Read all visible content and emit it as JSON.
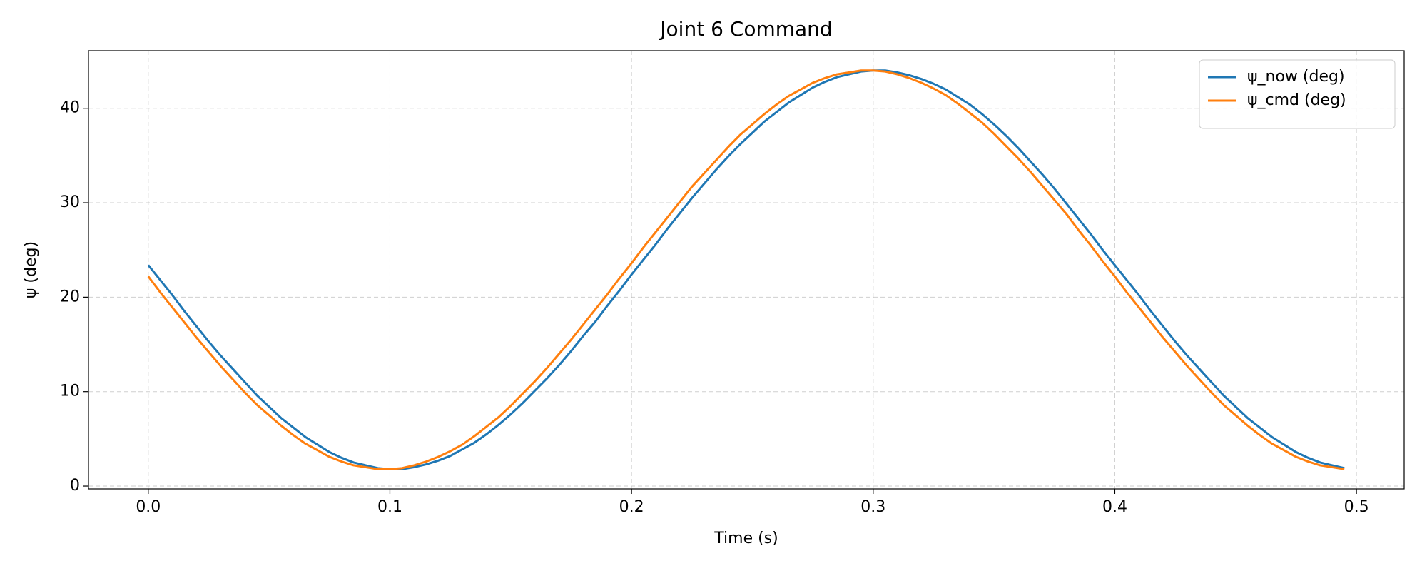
{
  "chart_data": {
    "type": "line",
    "title": "Joint 6 Command",
    "x_label": "Time (s)",
    "y_label": "ψ (deg)",
    "x": [
      0,
      0.005,
      0.01,
      0.015,
      0.02,
      0.025,
      0.03,
      0.035,
      0.04,
      0.045,
      0.05,
      0.055,
      0.06,
      0.065,
      0.07,
      0.075,
      0.08,
      0.085,
      0.09,
      0.095,
      0.1,
      0.105,
      0.11,
      0.115,
      0.12,
      0.125,
      0.13,
      0.135,
      0.14,
      0.145,
      0.15,
      0.155,
      0.16,
      0.165,
      0.17,
      0.175,
      0.18,
      0.185,
      0.19,
      0.195,
      0.2,
      0.205,
      0.21,
      0.215,
      0.22,
      0.225,
      0.23,
      0.235,
      0.24,
      0.245,
      0.25,
      0.255,
      0.26,
      0.265,
      0.27,
      0.275,
      0.28,
      0.285,
      0.29,
      0.295,
      0.3,
      0.305,
      0.31,
      0.315,
      0.32,
      0.325,
      0.33,
      0.335,
      0.34,
      0.345,
      0.35,
      0.355,
      0.36,
      0.365,
      0.37,
      0.375,
      0.38,
      0.385,
      0.39,
      0.395,
      0.4,
      0.405,
      0.41,
      0.415,
      0.42,
      0.425,
      0.43,
      0.435,
      0.44,
      0.445,
      0.45,
      0.455,
      0.46,
      0.465,
      0.47,
      0.475,
      0.48,
      0.485,
      0.49,
      0.495
    ],
    "series": [
      {
        "name": "ψ_now (deg)",
        "color": "#1f77b4",
        "values": [
          23.4,
          21.8,
          20.2,
          18.5,
          16.9,
          15.3,
          13.8,
          12.4,
          11.0,
          9.6,
          8.4,
          7.2,
          6.2,
          5.2,
          4.4,
          3.6,
          3.0,
          2.5,
          2.2,
          1.9,
          1.8,
          1.8,
          2.0,
          2.3,
          2.7,
          3.2,
          3.9,
          4.6,
          5.5,
          6.5,
          7.6,
          8.8,
          10.1,
          11.4,
          12.8,
          14.3,
          15.9,
          17.4,
          19.1,
          20.7,
          22.4,
          24.0,
          25.6,
          27.3,
          28.9,
          30.5,
          32.0,
          33.5,
          34.9,
          36.2,
          37.4,
          38.6,
          39.6,
          40.6,
          41.4,
          42.2,
          42.8,
          43.3,
          43.6,
          43.9,
          44.0,
          44.0,
          43.8,
          43.5,
          43.1,
          42.6,
          42.0,
          41.2,
          40.4,
          39.4,
          38.3,
          37.1,
          35.8,
          34.4,
          33.0,
          31.5,
          29.9,
          28.3,
          26.7,
          25.0,
          23.4,
          21.8,
          20.2,
          18.5,
          16.9,
          15.3,
          13.8,
          12.4,
          11.0,
          9.6,
          8.4,
          7.2,
          6.2,
          5.2,
          4.4,
          3.6,
          3.0,
          2.5,
          2.2,
          1.9
        ]
      },
      {
        "name": "ψ_cmd (deg)",
        "color": "#ff7f0e",
        "values": [
          22.2,
          20.5,
          18.9,
          17.3,
          15.7,
          14.2,
          12.7,
          11.3,
          9.9,
          8.6,
          7.5,
          6.4,
          5.4,
          4.5,
          3.8,
          3.1,
          2.6,
          2.2,
          2.0,
          1.8,
          1.8,
          1.9,
          2.2,
          2.6,
          3.1,
          3.7,
          4.4,
          5.3,
          6.3,
          7.3,
          8.5,
          9.8,
          11.1,
          12.5,
          14.0,
          15.5,
          17.1,
          18.7,
          20.3,
          22.0,
          23.6,
          25.3,
          26.9,
          28.5,
          30.1,
          31.7,
          33.1,
          34.5,
          35.9,
          37.2,
          38.3,
          39.4,
          40.4,
          41.3,
          42.0,
          42.7,
          43.2,
          43.6,
          43.8,
          44.0,
          44.0,
          43.9,
          43.6,
          43.2,
          42.7,
          42.1,
          41.4,
          40.5,
          39.5,
          38.5,
          37.3,
          36.0,
          34.7,
          33.3,
          31.8,
          30.3,
          28.8,
          27.1,
          25.5,
          23.8,
          22.2,
          20.5,
          18.9,
          17.3,
          15.7,
          14.2,
          12.7,
          11.3,
          9.9,
          8.6,
          7.5,
          6.4,
          5.4,
          4.5,
          3.8,
          3.1,
          2.6,
          2.2,
          2.0,
          1.8
        ]
      }
    ],
    "xlim": [
      -0.02475,
      0.51975
    ],
    "ylim": [
      -0.3,
      46.1
    ],
    "xticks": [
      {
        "value": 0,
        "label": "0.0"
      },
      0.1,
      0.2,
      0.3,
      0.4,
      0.5
    ],
    "yticks": [
      0,
      10,
      20,
      30,
      40
    ],
    "grid": true,
    "legend": "upper right"
  }
}
